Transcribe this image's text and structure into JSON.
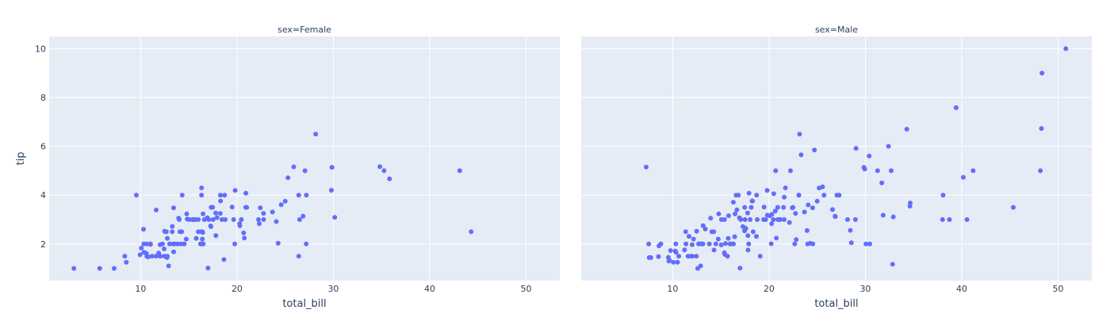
{
  "chart_data": [
    {
      "type": "scatter",
      "title": "sex=Female",
      "xlabel": "total_bill",
      "ylabel": "tip",
      "xlim": [
        0.5,
        53.5
      ],
      "ylim": [
        0.5,
        10.5
      ],
      "xticks": [
        10,
        20,
        30,
        40,
        50
      ],
      "yticks": [
        2,
        4,
        6,
        8,
        10
      ],
      "grid": true,
      "marker_color": "#636efa",
      "plot_bg": "#e5ecf6",
      "points": [
        [
          3.07,
          1.0
        ],
        [
          5.75,
          1.0
        ],
        [
          7.25,
          1.0
        ],
        [
          8.35,
          1.5
        ],
        [
          8.51,
          1.25
        ],
        [
          9.55,
          4.0
        ],
        [
          10.07,
          1.83
        ],
        [
          10.29,
          2.6
        ],
        [
          10.33,
          2.0
        ],
        [
          10.34,
          1.66
        ],
        [
          10.59,
          1.61
        ],
        [
          10.65,
          1.5
        ],
        [
          10.63,
          2.0
        ],
        [
          11.02,
          1.98
        ],
        [
          11.59,
          1.5
        ],
        [
          11.87,
          1.63
        ],
        [
          12.03,
          1.5
        ],
        [
          12.26,
          2.0
        ],
        [
          12.48,
          2.52
        ],
        [
          12.54,
          2.5
        ],
        [
          12.66,
          2.5
        ],
        [
          12.74,
          1.44
        ],
        [
          12.76,
          2.23
        ],
        [
          12.9,
          1.1
        ],
        [
          13.0,
          2.0
        ],
        [
          13.27,
          2.5
        ],
        [
          13.28,
          2.72
        ],
        [
          13.37,
          2.0
        ],
        [
          13.42,
          3.48
        ],
        [
          13.42,
          1.68
        ],
        [
          13.81,
          2.0
        ],
        [
          14.07,
          2.5
        ],
        [
          14.15,
          2.0
        ],
        [
          14.52,
          2.0
        ],
        [
          14.73,
          2.2
        ],
        [
          14.78,
          3.23
        ],
        [
          14.83,
          3.02
        ],
        [
          15.06,
          3.0
        ],
        [
          15.38,
          3.0
        ],
        [
          15.69,
          3.0
        ],
        [
          15.98,
          2.5
        ],
        [
          16.27,
          2.5
        ],
        [
          16.32,
          4.3
        ],
        [
          16.4,
          2.5
        ],
        [
          16.45,
          2.47
        ],
        [
          16.47,
          3.23
        ],
        [
          16.93,
          3.07
        ],
        [
          16.99,
          1.01
        ],
        [
          17.07,
          3.0
        ],
        [
          17.51,
          3.0
        ],
        [
          17.78,
          3.27
        ],
        [
          17.81,
          2.34
        ],
        [
          18.26,
          3.25
        ],
        [
          18.43,
          3.0
        ],
        [
          18.71,
          4.0
        ],
        [
          19.49,
          3.51
        ],
        [
          19.81,
          4.19
        ],
        [
          20.27,
          2.83
        ],
        [
          20.29,
          2.75
        ],
        [
          20.69,
          2.45
        ],
        [
          20.92,
          4.08
        ],
        [
          21.01,
          3.5
        ],
        [
          22.42,
          3.48
        ],
        [
          22.76,
          3.0
        ],
        [
          23.68,
          3.31
        ],
        [
          24.59,
          3.61
        ],
        [
          25.29,
          4.71
        ],
        [
          25.89,
          5.16
        ],
        [
          26.41,
          1.5
        ],
        [
          26.86,
          3.14
        ],
        [
          27.05,
          5.0
        ],
        [
          27.18,
          2.0
        ],
        [
          28.17,
          6.5
        ],
        [
          29.85,
          5.14
        ],
        [
          30.14,
          3.09
        ],
        [
          34.83,
          5.17
        ],
        [
          35.26,
          5.0
        ],
        [
          35.83,
          4.67
        ],
        [
          43.11,
          5.0
        ],
        [
          44.3,
          2.5
        ],
        [
          15.77,
          2.23
        ],
        [
          16.21,
          2.0
        ],
        [
          17.92,
          3.08
        ],
        [
          18.29,
          3.76
        ],
        [
          18.78,
          3.0
        ],
        [
          19.65,
          3.0
        ],
        [
          20.76,
          2.24
        ],
        [
          24.27,
          2.03
        ],
        [
          25.0,
          3.75
        ],
        [
          22.75,
          3.25
        ],
        [
          22.31,
          2.83
        ],
        [
          11.61,
          3.39
        ],
        [
          17.31,
          3.5
        ],
        [
          14.26,
          2.5
        ],
        [
          13.94,
          3.06
        ],
        [
          29.8,
          4.2
        ],
        [
          26.5,
          3.0
        ],
        [
          24.08,
          2.92
        ],
        [
          22.23,
          3.0
        ],
        [
          20.9,
          3.5
        ],
        [
          12.02,
          1.97
        ],
        [
          15.53,
          3.0
        ],
        [
          10.65,
          1.5
        ],
        [
          11.17,
          1.5
        ],
        [
          11.02,
          2.0
        ],
        [
          17.29,
          2.71
        ],
        [
          16.31,
          2.0
        ],
        [
          14.0,
          3.0
        ],
        [
          16.32,
          4.0
        ],
        [
          26.41,
          4.0
        ],
        [
          18.64,
          1.36
        ],
        [
          27.2,
          4.0
        ],
        [
          16.61,
          3.0
        ],
        [
          13.51,
          2.0
        ],
        [
          16.4,
          2.2
        ],
        [
          9.94,
          1.56
        ],
        [
          12.46,
          1.5
        ],
        [
          14.48,
          2.0
        ],
        [
          12.76,
          1.5
        ],
        [
          20.45,
          3.0
        ],
        [
          15.98,
          3.0
        ],
        [
          17.47,
          3.5
        ],
        [
          16.49,
          2.0
        ],
        [
          18.28,
          4.0
        ],
        [
          14.31,
          4.0
        ],
        [
          19.77,
          2.0
        ],
        [
          12.43,
          1.8
        ],
        [
          13.03,
          2.0
        ],
        [
          10.77,
          1.47
        ],
        [
          17.26,
          2.74
        ]
      ]
    },
    {
      "type": "scatter",
      "title": "sex=Male",
      "xlabel": "total_bill",
      "ylabel": "",
      "xlim": [
        0.5,
        53.5
      ],
      "ylim": [
        0.5,
        10.5
      ],
      "xticks": [
        10,
        20,
        30,
        40,
        50
      ],
      "yticks": [
        2,
        4,
        6,
        8,
        10
      ],
      "grid": true,
      "marker_color": "#636efa",
      "plot_bg": "#e5ecf6",
      "points": [
        [
          7.25,
          5.15
        ],
        [
          7.51,
          2.0
        ],
        [
          7.56,
          1.44
        ],
        [
          7.74,
          1.44
        ],
        [
          8.52,
          1.48
        ],
        [
          8.58,
          1.92
        ],
        [
          8.77,
          2.0
        ],
        [
          9.55,
          1.45
        ],
        [
          9.6,
          1.3
        ],
        [
          9.68,
          1.32
        ],
        [
          9.78,
          1.73
        ],
        [
          10.07,
          1.25
        ],
        [
          10.27,
          1.71
        ],
        [
          10.33,
          2.0
        ],
        [
          10.34,
          1.66
        ],
        [
          10.51,
          1.25
        ],
        [
          10.63,
          1.5
        ],
        [
          11.24,
          1.76
        ],
        [
          11.35,
          2.5
        ],
        [
          11.38,
          2.0
        ],
        [
          11.69,
          2.31
        ],
        [
          11.87,
          1.5
        ],
        [
          12.02,
          1.97
        ],
        [
          12.16,
          2.2
        ],
        [
          12.46,
          1.5
        ],
        [
          12.6,
          1.0
        ],
        [
          12.69,
          2.0
        ],
        [
          12.74,
          2.01
        ],
        [
          12.9,
          1.1
        ],
        [
          13.0,
          2.0
        ],
        [
          13.03,
          2.0
        ],
        [
          13.13,
          2.0
        ],
        [
          13.16,
          2.75
        ],
        [
          13.39,
          2.61
        ],
        [
          13.81,
          2.0
        ],
        [
          13.94,
          3.06
        ],
        [
          14.07,
          2.5
        ],
        [
          14.26,
          2.5
        ],
        [
          14.29,
          1.75
        ],
        [
          14.73,
          2.2
        ],
        [
          14.78,
          3.23
        ],
        [
          15.04,
          1.96
        ],
        [
          15.06,
          3.0
        ],
        [
          15.38,
          3.0
        ],
        [
          15.42,
          1.57
        ],
        [
          15.48,
          2.02
        ],
        [
          15.69,
          1.5
        ],
        [
          15.77,
          2.23
        ],
        [
          15.81,
          3.16
        ],
        [
          15.95,
          2.0
        ],
        [
          16.0,
          2.0
        ],
        [
          16.29,
          3.71
        ],
        [
          16.31,
          2.0
        ],
        [
          16.47,
          3.23
        ],
        [
          16.58,
          4.0
        ],
        [
          16.66,
          3.4
        ],
        [
          16.82,
          4.0
        ],
        [
          16.93,
          3.07
        ],
        [
          16.99,
          1.01
        ],
        [
          17.29,
          2.71
        ],
        [
          17.46,
          2.54
        ],
        [
          17.47,
          3.5
        ],
        [
          17.51,
          3.0
        ],
        [
          17.59,
          2.64
        ],
        [
          17.78,
          3.27
        ],
        [
          17.81,
          2.34
        ],
        [
          17.82,
          1.75
        ],
        [
          17.89,
          2.0
        ],
        [
          18.04,
          3.0
        ],
        [
          18.15,
          3.5
        ],
        [
          18.24,
          3.76
        ],
        [
          18.29,
          3.76
        ],
        [
          18.35,
          2.5
        ],
        [
          18.69,
          2.31
        ],
        [
          18.78,
          3.0
        ],
        [
          19.08,
          1.5
        ],
        [
          19.44,
          3.0
        ],
        [
          19.49,
          3.51
        ],
        [
          19.65,
          3.0
        ],
        [
          19.81,
          4.19
        ],
        [
          19.82,
          3.18
        ],
        [
          20.08,
          3.15
        ],
        [
          20.23,
          2.01
        ],
        [
          20.27,
          2.83
        ],
        [
          20.29,
          3.21
        ],
        [
          20.45,
          3.0
        ],
        [
          20.49,
          4.06
        ],
        [
          20.65,
          3.35
        ],
        [
          20.69,
          5.0
        ],
        [
          20.76,
          2.24
        ],
        [
          20.9,
          3.5
        ],
        [
          21.01,
          3.0
        ],
        [
          21.16,
          3.0
        ],
        [
          21.5,
          3.5
        ],
        [
          21.58,
          3.92
        ],
        [
          21.7,
          4.3
        ],
        [
          22.23,
          5.0
        ],
        [
          22.42,
          3.48
        ],
        [
          22.49,
          3.5
        ],
        [
          22.67,
          2.0
        ],
        [
          22.75,
          3.25
        ],
        [
          22.82,
          2.18
        ],
        [
          23.1,
          4.0
        ],
        [
          23.17,
          6.5
        ],
        [
          23.33,
          5.65
        ],
        [
          23.68,
          3.31
        ],
        [
          23.95,
          2.55
        ],
        [
          24.01,
          2.0
        ],
        [
          24.06,
          3.6
        ],
        [
          24.27,
          2.03
        ],
        [
          24.52,
          3.48
        ],
        [
          24.55,
          2.0
        ],
        [
          24.71,
          5.85
        ],
        [
          25.0,
          3.75
        ],
        [
          25.21,
          4.29
        ],
        [
          25.56,
          4.34
        ],
        [
          25.71,
          4.0
        ],
        [
          26.59,
          3.41
        ],
        [
          26.88,
          3.12
        ],
        [
          27.28,
          4.0
        ],
        [
          28.15,
          3.0
        ],
        [
          28.44,
          2.56
        ],
        [
          28.55,
          2.05
        ],
        [
          28.97,
          3.0
        ],
        [
          29.03,
          5.92
        ],
        [
          29.85,
          5.14
        ],
        [
          29.93,
          5.07
        ],
        [
          30.06,
          2.0
        ],
        [
          30.4,
          5.6
        ],
        [
          31.27,
          5.0
        ],
        [
          31.71,
          4.5
        ],
        [
          31.85,
          3.18
        ],
        [
          32.4,
          6.0
        ],
        [
          32.68,
          5.0
        ],
        [
          32.9,
          3.11
        ],
        [
          34.3,
          6.7
        ],
        [
          34.63,
          3.55
        ],
        [
          34.65,
          3.68
        ],
        [
          38.07,
          4.0
        ],
        [
          38.73,
          3.0
        ],
        [
          39.42,
          7.58
        ],
        [
          40.17,
          4.73
        ],
        [
          40.55,
          3.0
        ],
        [
          41.19,
          5.0
        ],
        [
          45.35,
          3.5
        ],
        [
          48.17,
          5.0
        ],
        [
          48.27,
          6.73
        ],
        [
          48.33,
          9.0
        ],
        [
          50.81,
          10.0
        ],
        [
          38.01,
          3.0
        ],
        [
          32.83,
          1.17
        ],
        [
          30.46,
          2.0
        ],
        [
          22.12,
          2.88
        ],
        [
          12.03,
          1.5
        ],
        [
          16.04,
          2.0
        ],
        [
          17.92,
          4.08
        ],
        [
          21.58,
          3.0
        ],
        [
          20.92,
          3.0
        ],
        [
          14.48,
          2.0
        ],
        [
          11.59,
          1.5
        ],
        [
          12.48,
          2.52
        ],
        [
          15.36,
          1.64
        ],
        [
          16.43,
          2.3
        ],
        [
          17.07,
          3.0
        ],
        [
          18.71,
          4.0
        ],
        [
          23.1,
          4.0
        ],
        [
          26.86,
          3.14
        ],
        [
          27.05,
          4.0
        ]
      ]
    }
  ]
}
